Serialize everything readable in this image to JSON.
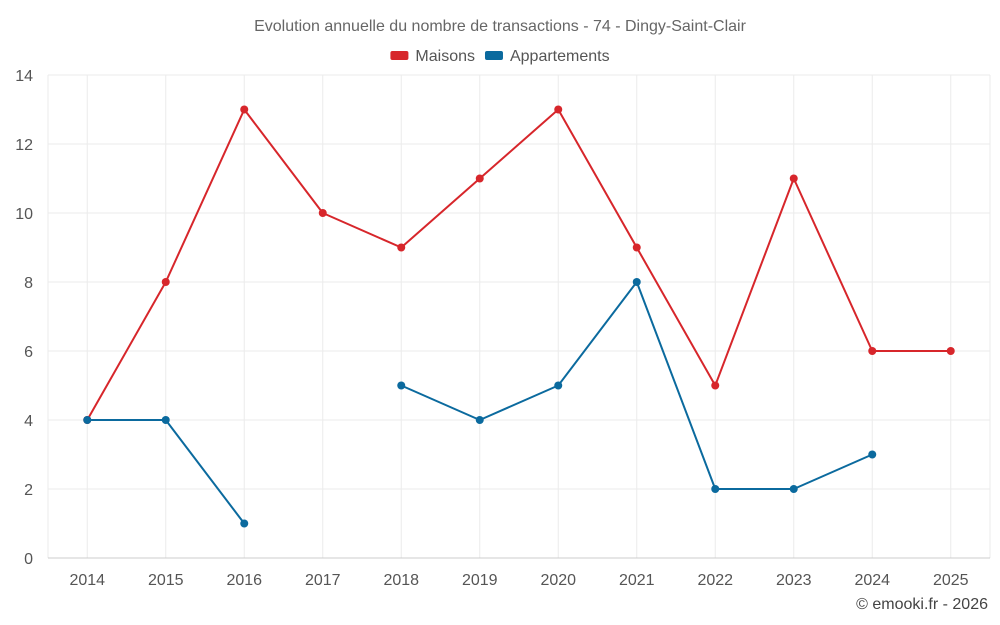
{
  "chart_data": {
    "type": "line",
    "title": "Evolution annuelle du nombre de transactions - 74 - Dingy-Saint-Clair",
    "categories": [
      "2014",
      "2015",
      "2016",
      "2017",
      "2018",
      "2019",
      "2020",
      "2021",
      "2022",
      "2023",
      "2024",
      "2025"
    ],
    "series": [
      {
        "name": "Maisons",
        "color": "#d7262b",
        "values": [
          4,
          8,
          13,
          10,
          9,
          11,
          13,
          9,
          5,
          11,
          6,
          6
        ]
      },
      {
        "name": "Appartements",
        "color": "#0b6a9e",
        "values": [
          4,
          4,
          1,
          null,
          5,
          4,
          5,
          8,
          2,
          2,
          3,
          null
        ]
      }
    ],
    "ylim": [
      0,
      14
    ],
    "yticks": [
      0,
      2,
      4,
      6,
      8,
      10,
      12,
      14
    ],
    "xlabel": "",
    "ylabel": "",
    "grid": true,
    "legend_position": "top-center"
  },
  "credit": "© emooki.fr - 2026"
}
